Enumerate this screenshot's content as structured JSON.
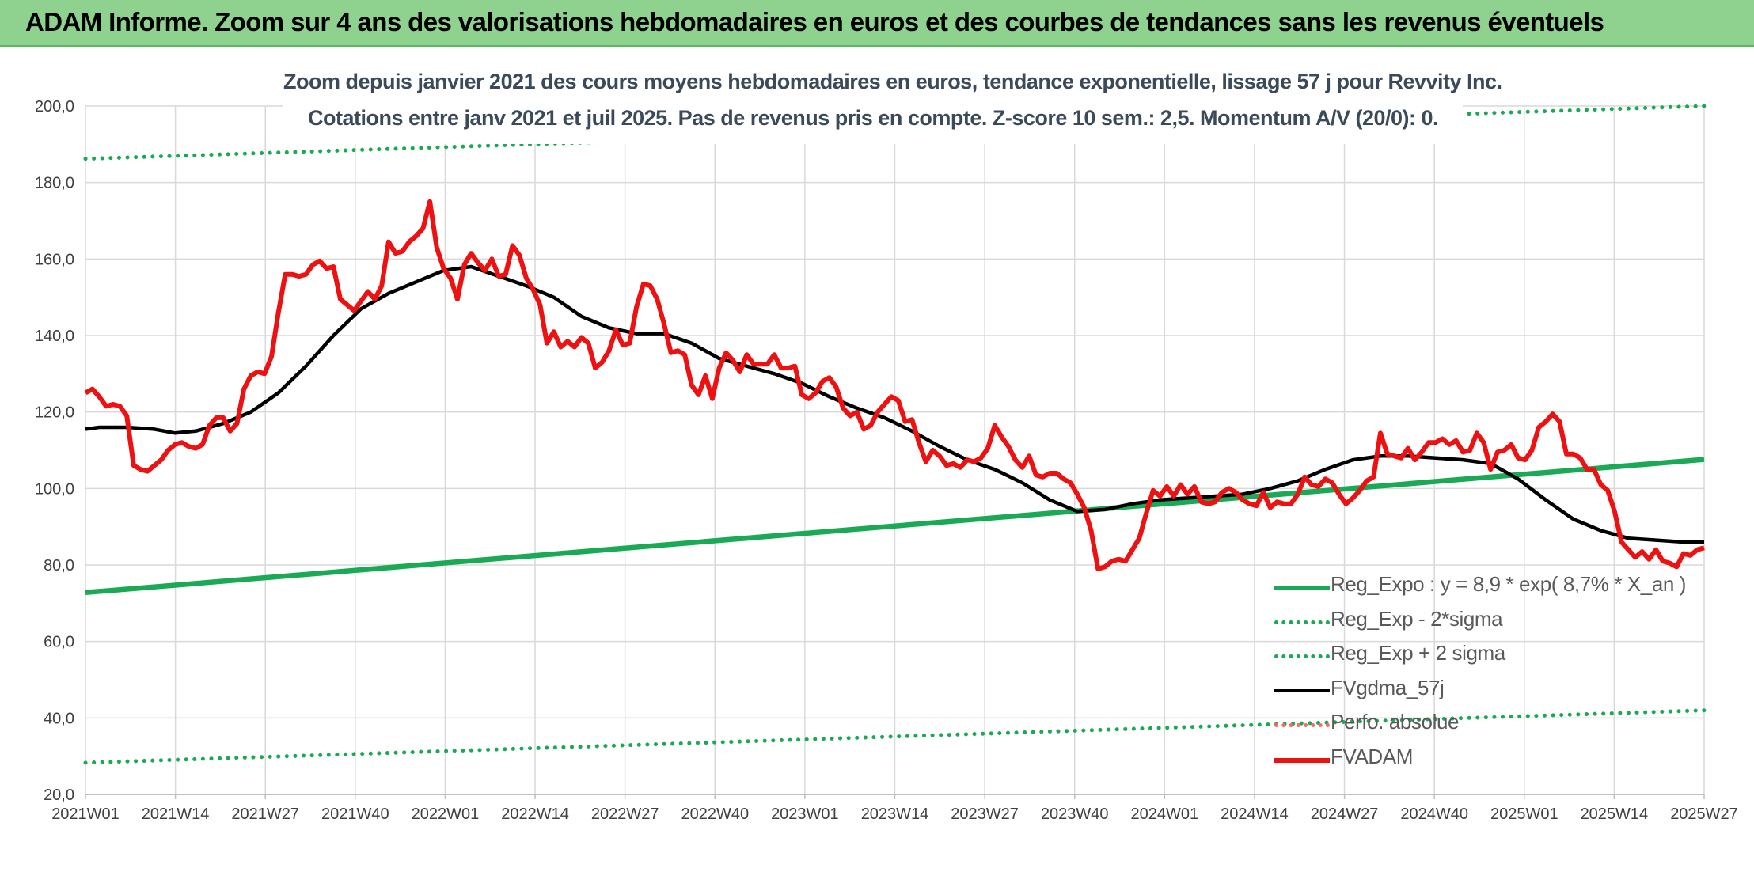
{
  "header": {
    "title": "ADAM Informe. Zoom sur 4 ans des valorisations hebdomadaires en euros et des courbes de tendances sans les revenus éventuels"
  },
  "chart_data": {
    "type": "line",
    "title": "Zoom depuis janvier 2021 des cours moyens hebdomadaires en euros, tendance exponentielle, lissage 57 j pour Revvity Inc.",
    "subtitle": "Cotations entre janv 2021 et juil 2025. Pas de revenus pris en compte. Z-score 10 sem.: 2,5. Momentum A/V (20/0): 0.",
    "xlabel": "",
    "ylabel": "",
    "ylim": [
      20,
      200
    ],
    "y_ticks": [
      "20,0",
      "40,0",
      "60,0",
      "80,0",
      "100,0",
      "120,0",
      "140,0",
      "160,0",
      "180,0",
      "200,0"
    ],
    "x_tick_labels": [
      "2021W01",
      "2021W14",
      "2021W27",
      "2021W40",
      "2022W01",
      "2022W14",
      "2022W27",
      "2022W40",
      "2023W01",
      "2023W14",
      "2023W27",
      "2023W40",
      "2024W01",
      "2024W14",
      "2024W27",
      "2024W40",
      "2025W01",
      "2025W14",
      "2025W27"
    ],
    "grid": true,
    "legend_position": "bottom-right",
    "series": [
      {
        "name": "Reg_Expo : y = 8,9 * exp( 8,7% *  X_an )",
        "color": "#1aaa55",
        "style": "solid",
        "x": [
          0,
          235
        ],
        "y": [
          72.8,
          107.6
        ]
      },
      {
        "name": "Reg_Exp - 2*sigma",
        "color": "#1aaa55",
        "style": "dotted",
        "x": [
          0,
          235
        ],
        "y": [
          28.3,
          42.0
        ]
      },
      {
        "name": "Reg_Exp + 2 sigma",
        "color": "#1aaa55",
        "style": "dotted",
        "x": [
          0,
          235
        ],
        "y": [
          186.2,
          200.0
        ]
      },
      {
        "name": "FVgdma_57j",
        "color": "#000000",
        "style": "solid",
        "x": [
          0,
          2,
          6,
          10,
          13,
          16,
          20,
          24,
          28,
          32,
          36,
          40,
          44,
          48,
          52,
          56,
          60,
          64,
          68,
          72,
          76,
          80,
          84,
          88,
          92,
          96,
          100,
          104,
          108,
          112,
          116,
          120,
          124,
          128,
          132,
          136,
          140,
          144,
          148,
          152,
          156,
          160,
          164,
          168,
          172,
          176,
          180,
          184,
          188,
          192,
          196,
          200,
          204,
          208,
          212,
          216,
          220,
          224,
          228,
          232,
          235
        ],
        "y": [
          115.5,
          116,
          116,
          115.5,
          114.5,
          115,
          117,
          120,
          125,
          132,
          140,
          147,
          151,
          154,
          157,
          158,
          155.5,
          153,
          150,
          145,
          142,
          140.5,
          140.5,
          138,
          134,
          132,
          130,
          127.5,
          124,
          121,
          118.5,
          115,
          111,
          107.5,
          105,
          101.5,
          97,
          94,
          94.5,
          96,
          97,
          97.5,
          98,
          98.5,
          100,
          102,
          105,
          107.5,
          108.5,
          108.5,
          108,
          107.5,
          106.5,
          102.5,
          97,
          92,
          89,
          87,
          86.5,
          86,
          86
        ]
      },
      {
        "name": "Perfo. absolue",
        "color": "#ff6666",
        "style": "dotted",
        "x": [],
        "y": []
      },
      {
        "name": "FVADAM",
        "color": "#ee1111",
        "style": "solid",
        "x": [
          0,
          1,
          2,
          3,
          4,
          5,
          6,
          7,
          8,
          9,
          10,
          11,
          12,
          13,
          14,
          15,
          16,
          17,
          18,
          19,
          20,
          21,
          22,
          23,
          24,
          25,
          26,
          27,
          28,
          29,
          30,
          31,
          32,
          33,
          34,
          35,
          36,
          37,
          38,
          39,
          40,
          41,
          42,
          43,
          44,
          45,
          46,
          47,
          48,
          49,
          50,
          51,
          52,
          53,
          54,
          55,
          56,
          57,
          58,
          59,
          60,
          61,
          62,
          63,
          64,
          65,
          66,
          67,
          68,
          69,
          70,
          71,
          72,
          73,
          74,
          75,
          76,
          77,
          78,
          79,
          80,
          81,
          82,
          83,
          84,
          85,
          86,
          87,
          88,
          89,
          90,
          91,
          92,
          93,
          94,
          95,
          96,
          97,
          98,
          99,
          100,
          101,
          102,
          103,
          104,
          105,
          106,
          107,
          108,
          109,
          110,
          111,
          112,
          113,
          114,
          115,
          116,
          117,
          118,
          119,
          120,
          121,
          122,
          123,
          124,
          125,
          126,
          127,
          128,
          129,
          130,
          131,
          132,
          133,
          134,
          135,
          136,
          137,
          138,
          139,
          140,
          141,
          142,
          143,
          144,
          145,
          146,
          147,
          148,
          149,
          150,
          151,
          152,
          153,
          154,
          155,
          156,
          157,
          158,
          159,
          160,
          161,
          162,
          163,
          164,
          165,
          166,
          167,
          168,
          169,
          170,
          171,
          172,
          173,
          174,
          175,
          176,
          177,
          178,
          179,
          180,
          181,
          182,
          183,
          184,
          185,
          186,
          187,
          188,
          189,
          190,
          191,
          192,
          193,
          194,
          195,
          196,
          197,
          198,
          199,
          200,
          201,
          202,
          203,
          204,
          205,
          206,
          207,
          208,
          209,
          210,
          211,
          212,
          213,
          214,
          215,
          216,
          217,
          218,
          219,
          220,
          221,
          222,
          223,
          224,
          225,
          226,
          227,
          228,
          229,
          230,
          231,
          232,
          233,
          234,
          235
        ],
        "y": [
          125,
          126,
          124,
          121.5,
          122,
          121.5,
          119,
          106,
          105,
          104.5,
          106,
          107.5,
          110,
          111.5,
          112,
          111,
          110.5,
          111.5,
          116.5,
          118.5,
          118.5,
          115,
          117,
          126,
          129.5,
          130.5,
          130,
          134.5,
          146,
          156,
          156,
          155.5,
          156,
          158.5,
          159.5,
          157.5,
          158,
          149.5,
          148,
          146.5,
          149,
          151.5,
          149.5,
          153,
          164.5,
          161.5,
          162,
          164.5,
          166,
          168,
          175,
          163,
          157.5,
          155,
          149.5,
          158.5,
          161.5,
          159,
          157,
          160,
          155.5,
          156,
          163.5,
          161,
          155,
          152,
          148,
          138,
          141,
          137,
          138.5,
          137,
          139.5,
          138,
          131.5,
          133,
          136,
          141.5,
          137.5,
          138,
          147.5,
          153.5,
          153,
          149.5,
          143,
          135.5,
          136,
          135,
          127,
          124.5,
          129.5,
          123.5,
          131.5,
          135.5,
          133.5,
          130.5,
          135,
          132.5,
          132.5,
          132.5,
          135,
          131.5,
          131.5,
          132,
          124.5,
          123.5,
          125,
          128,
          129,
          126.5,
          121,
          119,
          120,
          115.5,
          116.5,
          120,
          122,
          124,
          123,
          117.5,
          118,
          112,
          107,
          110,
          108.5,
          106,
          106.5,
          105.5,
          107.5,
          107,
          108,
          110.5,
          116.5,
          113.5,
          111,
          107.5,
          105.5,
          108.5,
          103.5,
          103,
          104,
          104,
          102.5,
          101.5,
          98.5,
          95,
          89,
          79,
          79.5,
          81,
          81.5,
          81,
          84,
          87,
          93.5,
          99.5,
          98,
          100.5,
          98,
          101,
          98.5,
          100.5,
          96.5,
          96,
          96.5,
          99,
          100,
          99,
          97,
          96,
          95.5,
          99,
          95,
          96.5,
          96,
          96,
          98.5,
          103,
          101,
          100.5,
          102.5,
          101.5,
          98.5,
          96,
          97.5,
          99.5,
          102,
          103,
          114.5,
          109,
          108.5,
          108,
          110.5,
          107.5,
          109.5,
          112,
          112,
          113,
          111.5,
          112.5,
          109.5,
          110,
          114.5,
          112,
          105,
          109.5,
          110,
          111.5,
          108,
          107.5,
          110,
          116,
          117.5,
          119.5,
          117.5,
          109,
          109,
          108,
          105,
          105,
          101,
          99.5,
          94,
          86,
          84,
          82,
          83.5,
          81.5,
          84,
          81,
          80.5,
          79.5,
          83,
          82.5,
          84,
          84.5
        ]
      }
    ]
  }
}
